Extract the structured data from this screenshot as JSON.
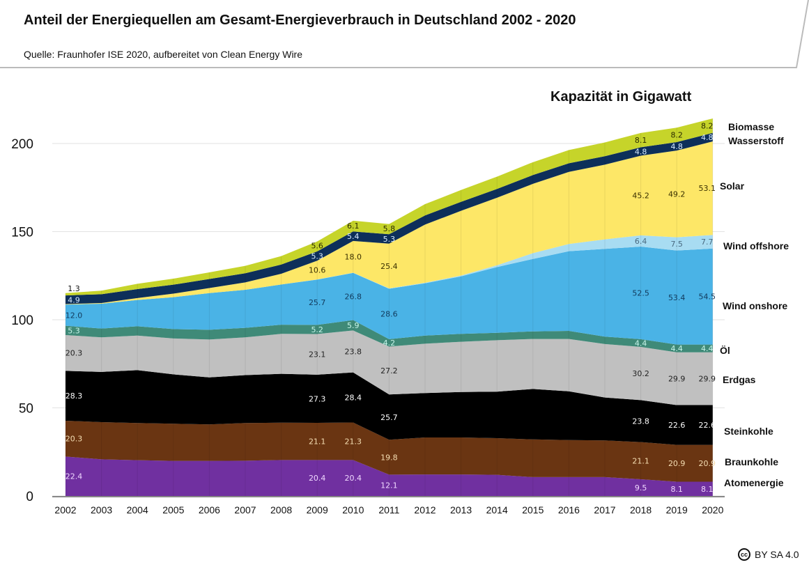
{
  "header": {
    "title": "Anteil der Energiequellen am Gesamt-Energieverbrauch in Deutschland 2002 - 2020",
    "source": "Quelle: Fraunhofer ISE 2020, aufbereitet von Clean Energy Wire"
  },
  "footer": {
    "license_icon": "cc-icon",
    "license_icon_text": "cc",
    "license": "BY SA 4.0"
  },
  "chart_data": {
    "type": "area",
    "stacked": true,
    "title": "Kapazität in Gigawatt",
    "xlabel": "",
    "ylabel": "",
    "ylim": [
      0,
      215
    ],
    "yticks": [
      0,
      50,
      100,
      150,
      200
    ],
    "grid": true,
    "legend": "right, labels beside stacked bands",
    "x": [
      2002,
      2003,
      2004,
      2005,
      2006,
      2007,
      2008,
      2009,
      2010,
      2011,
      2012,
      2013,
      2014,
      2015,
      2016,
      2017,
      2018,
      2019,
      2020
    ],
    "labeled_years": [
      2002,
      2009,
      2010,
      2011,
      2018,
      2019,
      2020
    ],
    "series": [
      {
        "name": "Atomenergie",
        "color": "#7030a0",
        "label_color": "#f0d8ff",
        "values": [
          22.4,
          20.8,
          20.3,
          19.9,
          19.9,
          20.0,
          20.4,
          20.4,
          20.4,
          12.1,
          12.2,
          12.2,
          12.0,
          10.7,
          10.7,
          10.7,
          9.5,
          8.1,
          8.1
        ]
      },
      {
        "name": "Braunkohle",
        "color": "#6a3512",
        "label_color": "#f5deb3",
        "values": [
          20.3,
          21.1,
          21.1,
          21.1,
          20.7,
          21.4,
          21.2,
          21.1,
          21.3,
          19.8,
          21.0,
          21.0,
          20.8,
          21.4,
          21.0,
          20.8,
          21.1,
          20.9,
          20.9
        ]
      },
      {
        "name": "Steinkohle",
        "color": "#000000",
        "label_color": "#ffffff",
        "values": [
          28.3,
          28.5,
          30.0,
          28.0,
          26.7,
          27.2,
          27.7,
          27.3,
          28.4,
          25.7,
          25.2,
          25.8,
          26.4,
          28.6,
          27.7,
          24.4,
          23.8,
          22.6,
          22.6
        ]
      },
      {
        "name": "Erdgas",
        "color": "#c0c0c0",
        "label_color": "#222222",
        "values": [
          20.3,
          19.6,
          19.6,
          20.4,
          21.5,
          21.4,
          22.7,
          23.1,
          23.8,
          27.2,
          28.0,
          28.5,
          29.2,
          28.4,
          29.7,
          30.3,
          30.2,
          29.9,
          29.9
        ]
      },
      {
        "name": "Öl",
        "color": "#3f8a78",
        "label_color": "#c8f5ea",
        "values": [
          5.3,
          5.0,
          5.3,
          5.3,
          5.5,
          5.4,
          5.2,
          5.2,
          5.9,
          4.2,
          4.6,
          4.5,
          4.2,
          4.3,
          4.6,
          4.2,
          4.4,
          4.4,
          4.4
        ]
      },
      {
        "name": "Wind onshore",
        "color": "#4ab3e6",
        "label_color": "#123a5c",
        "values": [
          12.0,
          14.1,
          14.9,
          18.1,
          20.8,
          21.6,
          22.8,
          25.7,
          26.8,
          28.6,
          29.7,
          32.6,
          37.3,
          41.1,
          45.2,
          49.8,
          52.5,
          53.4,
          54.5
        ]
      },
      {
        "name": "Wind offshore",
        "color": "#a8dcf2",
        "label_color": "#4a6a80",
        "values": [
          0,
          0,
          0,
          0,
          0,
          0,
          0,
          0.1,
          0.1,
          0.2,
          0.3,
          0.5,
          1.0,
          3.3,
          4.1,
          5.4,
          6.4,
          7.5,
          7.7
        ]
      },
      {
        "name": "Solar",
        "color": "#fde767",
        "label_color": "#3a3000",
        "values": [
          0.3,
          0.4,
          1.1,
          2.0,
          2.9,
          4.2,
          6.1,
          10.6,
          18.0,
          25.4,
          33.0,
          36.7,
          38.3,
          39.3,
          40.9,
          42.4,
          45.2,
          49.2,
          53.1
        ]
      },
      {
        "name": "Wasserstoff",
        "color": "#0d2f5a",
        "label_color": "#d8ecff",
        "values": [
          4.9,
          5.0,
          5.1,
          5.1,
          5.1,
          5.2,
          5.2,
          5.3,
          5.4,
          5.3,
          5.2,
          5.1,
          5.0,
          5.0,
          4.9,
          4.8,
          4.8,
          4.8,
          4.8
        ]
      },
      {
        "name": "Biomasse",
        "color": "#c6d42a",
        "label_color": "#2a2a00",
        "values": [
          1.3,
          2.0,
          3.0,
          3.4,
          3.8,
          4.2,
          4.8,
          5.6,
          6.1,
          5.8,
          6.4,
          6.7,
          7.0,
          7.3,
          7.5,
          7.8,
          8.1,
          8.2,
          8.2
        ]
      }
    ]
  }
}
